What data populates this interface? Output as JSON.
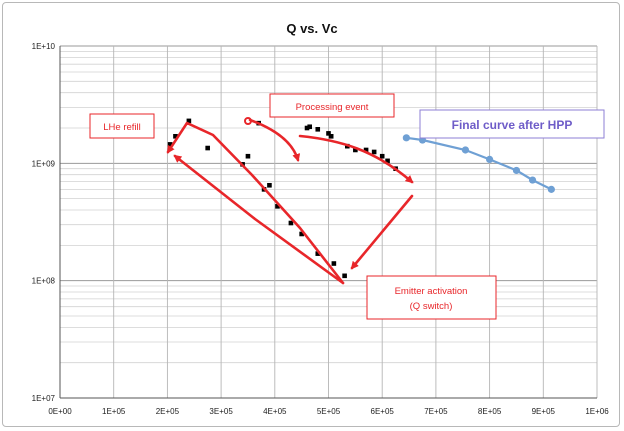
{
  "chart_data": {
    "type": "scatter",
    "title": "Q vs. Vc",
    "xlabel": "",
    "ylabel": "",
    "xlim": [
      0,
      1000000
    ],
    "ylim": [
      10000000,
      10000000000
    ],
    "y_scale": "log",
    "grid": true,
    "x_tick_labels": [
      "0E+00",
      "1E+05",
      "2E+05",
      "3E+05",
      "4E+05",
      "5E+05",
      "6E+05",
      "7E+05",
      "8E+05",
      "9E+05",
      "1E+06"
    ],
    "y_tick_labels": [
      "1E+07",
      "1E+08",
      "1E+09",
      "1E+10"
    ],
    "series": [
      {
        "name": "",
        "marker": "square",
        "color": "#000000",
        "points": [
          [
            205000,
            1450000000
          ],
          [
            215000,
            1700000000
          ],
          [
            240000,
            2300000000
          ],
          [
            275000,
            1350000000
          ],
          [
            340000,
            980000000
          ],
          [
            350000,
            1150000000
          ],
          [
            370000,
            2200000000
          ],
          [
            380000,
            600000000
          ],
          [
            390000,
            650000000
          ],
          [
            405000,
            430000000
          ],
          [
            430000,
            310000000
          ],
          [
            450000,
            250000000
          ],
          [
            460000,
            2000000000
          ],
          [
            465000,
            2050000000
          ],
          [
            480000,
            1950000000
          ],
          [
            480000,
            170000000
          ],
          [
            500000,
            1800000000
          ],
          [
            505000,
            1700000000
          ],
          [
            510000,
            140000000
          ],
          [
            530000,
            110000000
          ],
          [
            535000,
            1400000000
          ],
          [
            550000,
            1300000000
          ],
          [
            570000,
            1300000000
          ],
          [
            585000,
            1250000000
          ],
          [
            600000,
            1150000000
          ],
          [
            610000,
            1050000000
          ],
          [
            625000,
            900000000
          ]
        ]
      },
      {
        "name": "",
        "marker": "circle",
        "color": "#6fa0d4",
        "points": [
          [
            645000,
            1650000000
          ],
          [
            675000,
            1580000000
          ],
          [
            755000,
            1300000000
          ],
          [
            800000,
            1080000000
          ],
          [
            850000,
            870000000
          ],
          [
            880000,
            720000000
          ],
          [
            915000,
            600000000
          ]
        ]
      }
    ],
    "annotations": [
      {
        "text": "LHe refill"
      },
      {
        "text": "Processing event"
      },
      {
        "text": "Emitter activation"
      },
      {
        "text": "(Q switch)"
      },
      {
        "text": "Final curve after HPP",
        "color": "#6e5cc8"
      }
    ],
    "annotation_color": "#e8262a"
  }
}
